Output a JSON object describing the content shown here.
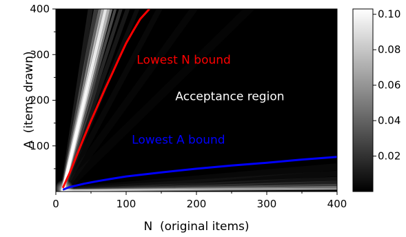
{
  "chart_data": {
    "type": "heatmap",
    "xlabel": "N  (original items)",
    "ylabel": "A  (items drawn)",
    "xlim": [
      0,
      400
    ],
    "ylim": [
      0,
      400
    ],
    "x_ticks": [
      {
        "value": 0,
        "label": "0"
      },
      {
        "value": 100,
        "label": "100"
      },
      {
        "value": 200,
        "label": "200"
      },
      {
        "value": 300,
        "label": "300"
      },
      {
        "value": 400,
        "label": "400"
      }
    ],
    "y_ticks": [
      {
        "value": 100,
        "label": "100"
      },
      {
        "value": 200,
        "label": "200"
      },
      {
        "value": 300,
        "label": "300"
      },
      {
        "value": 400,
        "label": "400"
      }
    ],
    "grid": false,
    "colormap": "gray",
    "colorbar": {
      "min": 0.0,
      "max": 0.103,
      "ticks": [
        {
          "value": 0.02,
          "label": "0.02"
        },
        {
          "value": 0.04,
          "label": "0.04"
        },
        {
          "value": 0.06,
          "label": "0.06"
        },
        {
          "value": 0.08,
          "label": "0.08"
        },
        {
          "value": 0.1,
          "label": "0.10"
        }
      ]
    },
    "series": [
      {
        "name": "Lowest N bound",
        "color": "#ff0000",
        "x": [
          10,
          20,
          30,
          40,
          50,
          60,
          70,
          80,
          90,
          100,
          110,
          120,
          133
        ],
        "y": [
          8,
          42,
          80,
          118,
          155,
          190,
          225,
          258,
          292,
          325,
          352,
          378,
          400
        ]
      },
      {
        "name": "Lowest A bound",
        "color": "#0000ff",
        "x": [
          10,
          20,
          40,
          60,
          80,
          100,
          150,
          200,
          250,
          300,
          350,
          400
        ],
        "y": [
          4,
          10,
          17,
          23,
          28,
          33,
          42,
          50,
          57,
          63,
          70,
          76
        ]
      }
    ],
    "annotations": [
      {
        "text": "Lowest N bound",
        "color": "#ff0000",
        "x": 115,
        "y": 280
      },
      {
        "text": "Acceptance region",
        "color": "#ffffff",
        "x": 170,
        "y": 200
      },
      {
        "text": "Lowest A bound",
        "color": "#0000ff",
        "x": 108,
        "y": 105
      }
    ]
  }
}
